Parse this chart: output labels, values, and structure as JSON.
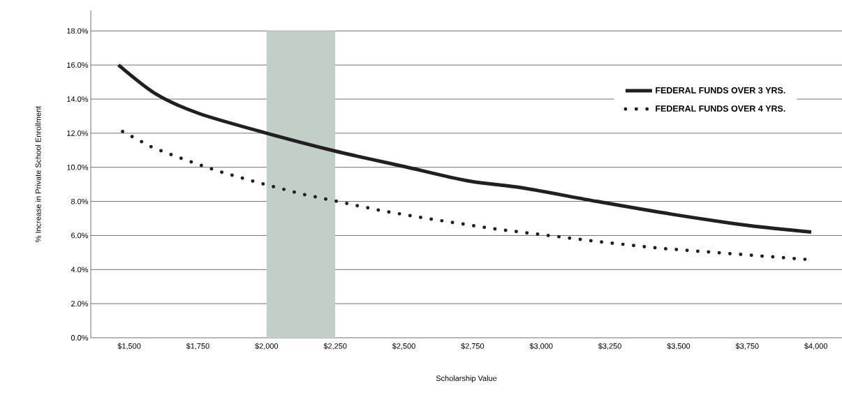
{
  "chart_data": {
    "type": "line",
    "xlabel": "Scholarship Value",
    "ylabel": "% Increase in Private School Enrollment",
    "xlim": [
      1360,
      4095
    ],
    "ylim": [
      0,
      19.2
    ],
    "xticks": [
      {
        "value": 1500,
        "label": "$1,500"
      },
      {
        "value": 1750,
        "label": "$1,750"
      },
      {
        "value": 2000,
        "label": "$2,000"
      },
      {
        "value": 2250,
        "label": "$2,250"
      },
      {
        "value": 2500,
        "label": "$2,500"
      },
      {
        "value": 2750,
        "label": "$2,750"
      },
      {
        "value": 3000,
        "label": "$3,000"
      },
      {
        "value": 3250,
        "label": "$3,250"
      },
      {
        "value": 3500,
        "label": "$3,500"
      },
      {
        "value": 3750,
        "label": "$3,750"
      },
      {
        "value": 4000,
        "label": "$4,000"
      }
    ],
    "yticks": [
      {
        "value": 0,
        "label": "0.0%"
      },
      {
        "value": 2,
        "label": "2.0%"
      },
      {
        "value": 4,
        "label": "4.0%"
      },
      {
        "value": 6,
        "label": "6.0%"
      },
      {
        "value": 8,
        "label": "8.0%"
      },
      {
        "value": 10,
        "label": "10.0%"
      },
      {
        "value": 12,
        "label": "12.0%"
      },
      {
        "value": 14,
        "label": "14.0%"
      },
      {
        "value": 16,
        "label": "16.0%"
      },
      {
        "value": 18,
        "label": "18.0%"
      }
    ],
    "grid": "y",
    "legend": "top right",
    "marker": "none",
    "bands": [
      {
        "axis": "x",
        "from": 2000,
        "to": 2250,
        "color": "#c1cfc7"
      }
    ],
    "series": [
      {
        "name": "FEDERAL FUNDS OVER 3 YRS.",
        "color": "#231f20",
        "line_style": "solid",
        "x": [
          1461,
          1597,
          1755,
          2000,
          2250,
          2500,
          2735,
          2929,
          3202,
          3474,
          3747,
          3983
        ],
        "values": [
          16.0,
          14.3,
          13.15,
          12.0,
          10.95,
          10.05,
          9.2,
          8.8,
          8.0,
          7.25,
          6.6,
          6.2
        ]
      },
      {
        "name": "FEDERAL FUNDS OVER 4 YRS.",
        "color": "#231f20",
        "line_style": "dotted",
        "x": [
          1476,
          1586,
          1702,
          1818,
          1936,
          2016,
          2136,
          2257,
          2419,
          2582,
          2704,
          2823,
          3025,
          3228,
          3431,
          3634,
          3838,
          3960
        ],
        "values": [
          12.1,
          11.15,
          10.45,
          9.8,
          9.25,
          8.9,
          8.4,
          8.0,
          7.45,
          7.0,
          6.7,
          6.4,
          6.0,
          5.6,
          5.25,
          5.0,
          4.75,
          4.6
        ]
      }
    ]
  }
}
